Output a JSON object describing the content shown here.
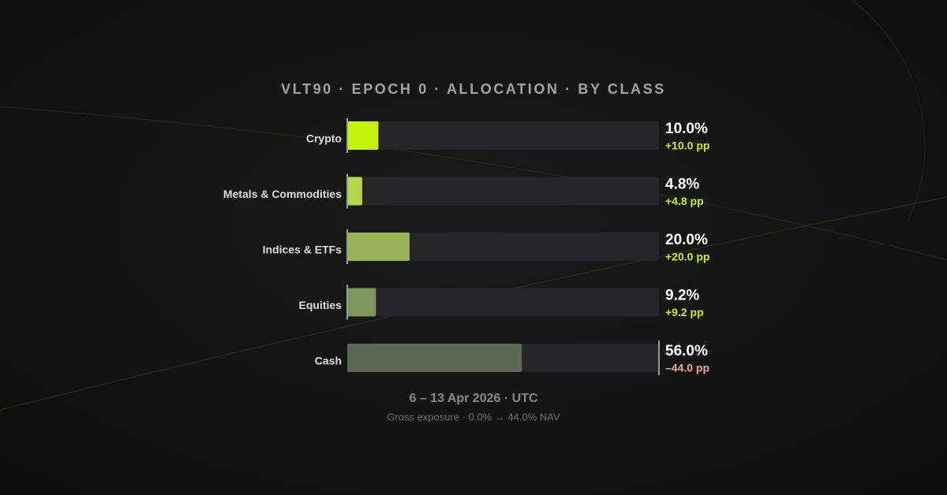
{
  "chart_data": {
    "type": "bar",
    "orientation": "horizontal",
    "title": "VLT90 · EPOCH 0 · ALLOCATION · BY CLASS",
    "subtitle": "6 – 13 Apr 2026 · UTC",
    "footnote": "Gross exposure · 0.0% → 44.0% NAV",
    "categories": [
      "Crypto",
      "Metals & Commodities",
      "Indices & ETFs",
      "Equities",
      "Cash"
    ],
    "values": [
      10.0,
      4.8,
      20.0,
      9.2,
      56.0
    ],
    "value_labels": [
      "10.0%",
      "4.8%",
      "20.0%",
      "9.2%",
      "56.0%"
    ],
    "colors": [
      "#c5f20c",
      "#b3d64a",
      "#98b35a",
      "#7d9659",
      "#5b6955"
    ],
    "changes": {
      "values": [
        10.0,
        4.8,
        20.0,
        9.2,
        -44.0
      ],
      "value_labels": [
        "+10.0 pp",
        "+4.8 pp",
        "+20.0 pp",
        "+9.2 pp",
        "–44.0 pp"
      ]
    },
    "xlim": [
      0,
      100
    ]
  }
}
